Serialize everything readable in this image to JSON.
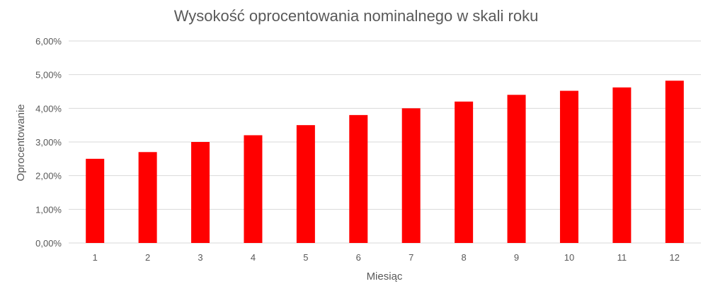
{
  "chart_data": {
    "type": "bar",
    "title": "Wysokość oprocentowania nominalnego w skali roku",
    "xlabel": "Miesiąc",
    "ylabel": "Oprocentowanie",
    "categories": [
      "1",
      "2",
      "3",
      "4",
      "5",
      "6",
      "7",
      "8",
      "9",
      "10",
      "11",
      "12"
    ],
    "values": [
      2.5,
      2.7,
      3.0,
      3.2,
      3.5,
      3.8,
      4.0,
      4.2,
      4.4,
      4.52,
      4.62,
      4.82
    ],
    "ylim": [
      0,
      6
    ],
    "yticks": [
      "0,00%",
      "1,00%",
      "2,00%",
      "3,00%",
      "4,00%",
      "5,00%",
      "6,00%"
    ],
    "grid": true,
    "legend": "none",
    "bar_color": "#ff0000",
    "grid_color": "#d9d9d9"
  }
}
